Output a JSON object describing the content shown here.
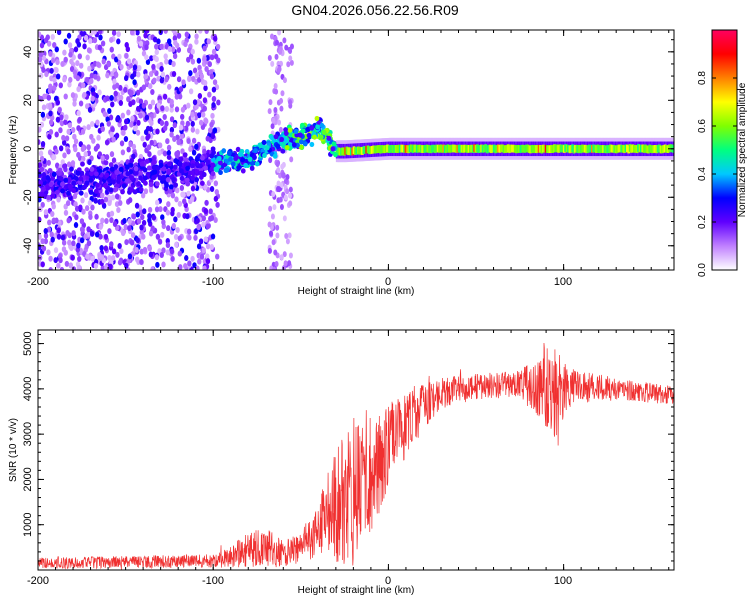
{
  "title": "GN04.2026.056.22.56.R09",
  "chart_data": [
    {
      "type": "heatmap",
      "xlabel": "Height of straight line (km)",
      "ylabel": "Frequency (Hz)",
      "xlim": [
        -200,
        163
      ],
      "ylim": [
        -50,
        49
      ],
      "xticks": [
        {
          "value": -200,
          "label": "-200"
        },
        {
          "value": -100,
          "label": "-100"
        },
        {
          "value": 0,
          "label": "0"
        },
        {
          "value": 100,
          "label": "100"
        }
      ],
      "yticks": [
        {
          "value": -40,
          "label": "-40"
        },
        {
          "value": -20,
          "label": "-20"
        },
        {
          "value": 0,
          "label": "0"
        },
        {
          "value": 20,
          "label": "20"
        },
        {
          "value": 40,
          "label": "40"
        }
      ],
      "colorbar": {
        "label": "Normalized spectral amplitude",
        "range": [
          0,
          1
        ],
        "ticks": [
          {
            "value": 0.0,
            "label": "0.0"
          },
          {
            "value": 0.2,
            "label": "0.2"
          },
          {
            "value": 0.4,
            "label": "0.4"
          },
          {
            "value": 0.6,
            "label": "0.6"
          },
          {
            "value": 0.8,
            "label": "0.8"
          }
        ],
        "colors": [
          "#ffffff",
          "#c080ff",
          "#6000ff",
          "#0000ff",
          "#00c8ff",
          "#00ff80",
          "#80ff00",
          "#ffff00",
          "#ff8000",
          "#ff0000",
          "#ff0060"
        ]
      },
      "ridge": [
        {
          "x": -200,
          "f": -14
        },
        {
          "x": -150,
          "f": -12
        },
        {
          "x": -130,
          "f": -10
        },
        {
          "x": -110,
          "f": -8
        },
        {
          "x": -100,
          "f": -6
        },
        {
          "x": -80,
          "f": -4
        },
        {
          "x": -65,
          "f": 2
        },
        {
          "x": -50,
          "f": 5
        },
        {
          "x": -40,
          "f": 8
        },
        {
          "x": -35,
          "f": 4
        },
        {
          "x": -30,
          "f": -1
        },
        {
          "x": -25,
          "f": -1
        },
        {
          "x": 0,
          "f": 0
        },
        {
          "x": 50,
          "f": 0
        },
        {
          "x": 100,
          "f": 0
        },
        {
          "x": 163,
          "f": 0
        }
      ],
      "noise_extent_x": [
        -200,
        -97
      ],
      "noise_strip_x": [
        -68,
        -55
      ]
    },
    {
      "type": "line",
      "xlabel": "Height of straight line (km)",
      "ylabel": "SNR (10 * v/v)",
      "xlim": [
        -200,
        163
      ],
      "ylim": [
        0,
        5300
      ],
      "xticks": [
        {
          "value": -200,
          "label": "-200"
        },
        {
          "value": -100,
          "label": "-100"
        },
        {
          "value": 0,
          "label": "0"
        },
        {
          "value": 100,
          "label": "100"
        }
      ],
      "yticks": [
        {
          "value": 1000,
          "label": "1000"
        },
        {
          "value": 2000,
          "label": "2000"
        },
        {
          "value": 3000,
          "label": "3000"
        },
        {
          "value": 4000,
          "label": "4000"
        },
        {
          "value": 5000,
          "label": "5000"
        }
      ],
      "color": "#f03030",
      "envelope": [
        {
          "x": -200,
          "y": 150,
          "noise": 120
        },
        {
          "x": -100,
          "y": 200,
          "noise": 150
        },
        {
          "x": -90,
          "y": 300,
          "noise": 250
        },
        {
          "x": -80,
          "y": 450,
          "noise": 400
        },
        {
          "x": -70,
          "y": 500,
          "noise": 450
        },
        {
          "x": -60,
          "y": 350,
          "noise": 300
        },
        {
          "x": -50,
          "y": 500,
          "noise": 350
        },
        {
          "x": -40,
          "y": 900,
          "noise": 600
        },
        {
          "x": -30,
          "y": 1400,
          "noise": 1300
        },
        {
          "x": -20,
          "y": 1800,
          "noise": 1700
        },
        {
          "x": -10,
          "y": 2200,
          "noise": 1400
        },
        {
          "x": 0,
          "y": 2700,
          "noise": 1000
        },
        {
          "x": 10,
          "y": 3200,
          "noise": 700
        },
        {
          "x": 20,
          "y": 3600,
          "noise": 500
        },
        {
          "x": 30,
          "y": 3900,
          "noise": 350
        },
        {
          "x": 50,
          "y": 4050,
          "noise": 280
        },
        {
          "x": 75,
          "y": 4100,
          "noise": 300
        },
        {
          "x": 85,
          "y": 4050,
          "noise": 700
        },
        {
          "x": 95,
          "y": 4000,
          "noise": 1100
        },
        {
          "x": 105,
          "y": 4050,
          "noise": 400
        },
        {
          "x": 130,
          "y": 4000,
          "noise": 250
        },
        {
          "x": 163,
          "y": 3850,
          "noise": 200
        }
      ]
    }
  ]
}
